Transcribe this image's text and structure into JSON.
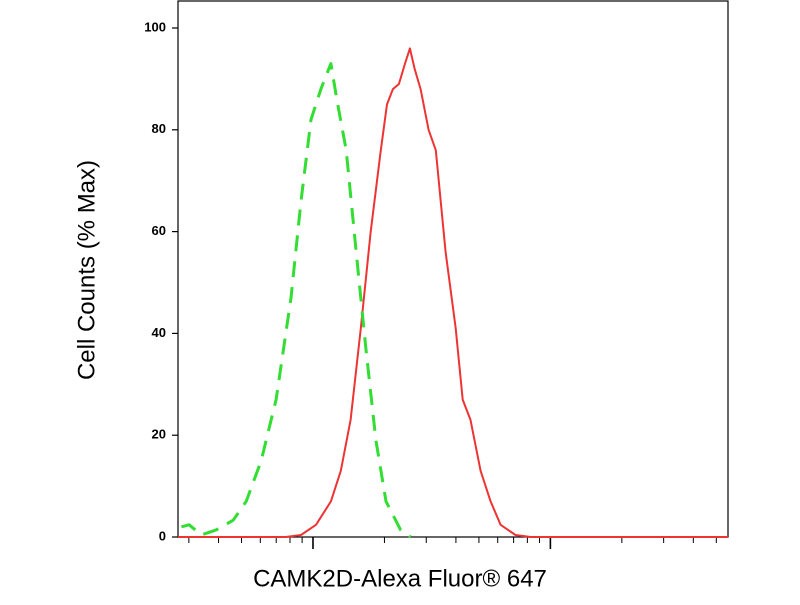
{
  "chart_data": {
    "type": "line",
    "xlabel": "CAMK2D-Alexa Fluor® 647",
    "ylabel": "Cell Counts (% Max)",
    "xscale": "log",
    "xlim": [
      270,
      56000
    ],
    "ylim": [
      0,
      100
    ],
    "xticks": [
      300,
      400,
      500,
      600,
      700,
      800,
      900,
      1000,
      2000,
      3000,
      4000,
      5000,
      6000,
      7000,
      8000,
      9000,
      10000,
      20000,
      30000,
      40000,
      50000
    ],
    "yticks": [
      0,
      20,
      40,
      60,
      80,
      100
    ],
    "series": [
      {
        "color": "#ee3333",
        "dash": false,
        "x": [
          270,
          770,
          890,
          1030,
          1190,
          1310,
          1440,
          1590,
          1750,
          1930,
          2050,
          2170,
          2300,
          2440,
          2560,
          2680,
          2840,
          3070,
          3290,
          3620,
          3990,
          4270,
          4610,
          5080,
          5600,
          6170,
          7130,
          8240,
          56000
        ],
        "values": [
          0,
          0,
          0.4,
          2.4,
          7,
          13,
          23,
          41,
          60,
          76,
          85,
          88,
          89,
          93,
          96,
          92,
          88,
          80,
          76,
          56,
          41,
          27,
          23,
          13,
          7,
          2.4,
          0.4,
          0,
          0
        ]
      },
      {
        "color": "#33dd33",
        "dash": true,
        "x": [
          279,
          301,
          338,
          391,
          461,
          523,
          605,
          699,
          808,
          890,
          981,
          1080,
          1190,
          1260,
          1380,
          1520,
          1670,
          1840,
          2030,
          2340,
          2580
        ],
        "values": [
          2,
          2.4,
          0.4,
          1.4,
          3.3,
          7,
          15,
          27,
          47,
          66,
          82,
          88,
          93,
          86,
          76,
          56,
          37,
          19,
          7,
          1.4,
          0
        ]
      }
    ]
  }
}
